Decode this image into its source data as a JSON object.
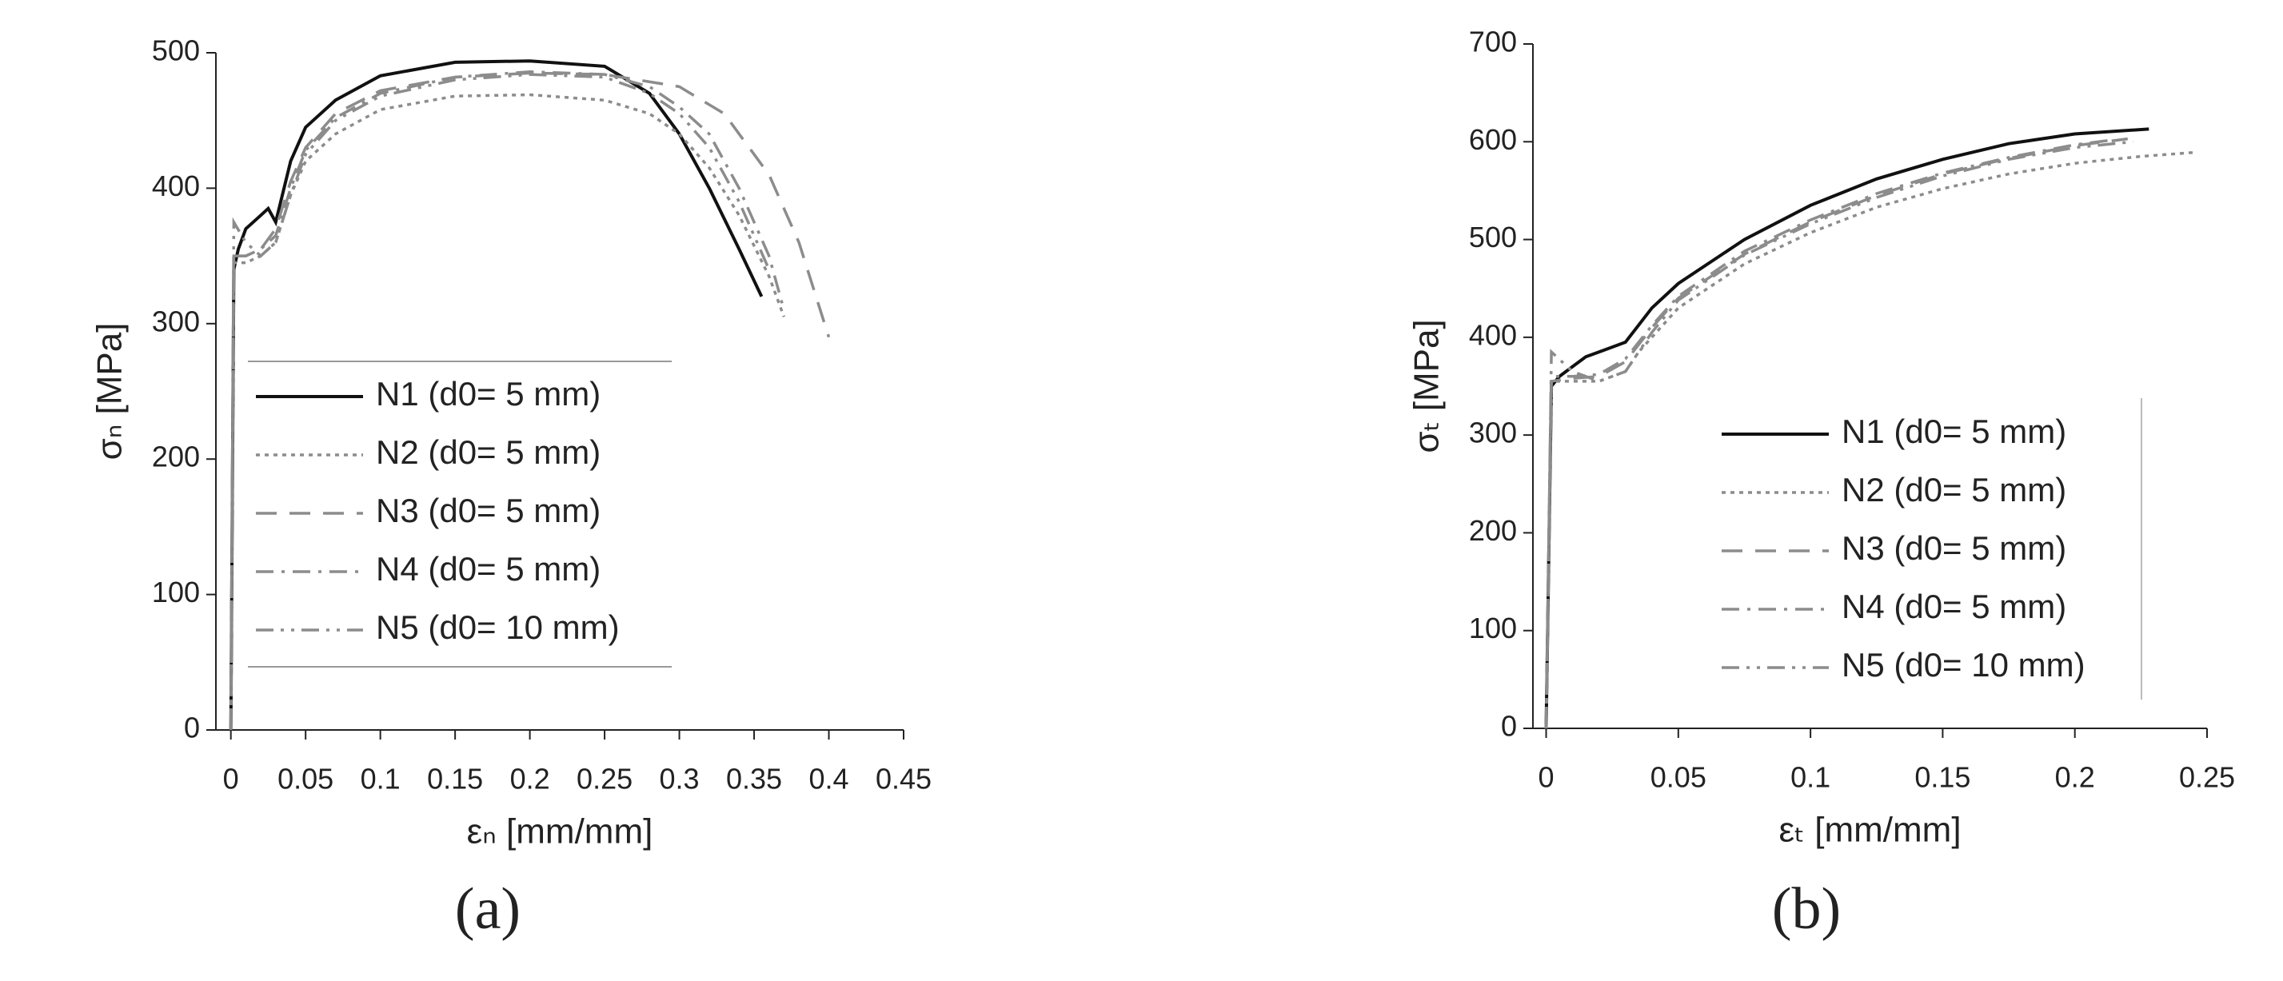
{
  "chart_data": [
    {
      "type": "line",
      "panel_label": "(a)",
      "xlabel": "εₙ [mm/mm]",
      "ylabel": "σₙ [MPa]",
      "xlim": [
        -0.01,
        0.45
      ],
      "ylim": [
        0,
        500
      ],
      "xticks": [
        0,
        0.05,
        0.1,
        0.15,
        0.2,
        0.25,
        0.3,
        0.35,
        0.4,
        0.45
      ],
      "yticks": [
        0,
        100,
        200,
        300,
        400,
        500
      ],
      "legend": "center left",
      "series": [
        {
          "name": "N1 (d0= 5 mm)",
          "color": "#111111",
          "dash": "solid",
          "x": [
            0,
            0.002,
            0.005,
            0.01,
            0.015,
            0.02,
            0.025,
            0.03,
            0.04,
            0.05,
            0.07,
            0.1,
            0.15,
            0.2,
            0.25,
            0.28,
            0.3,
            0.32,
            0.34,
            0.355
          ],
          "values": [
            0,
            340,
            355,
            370,
            375,
            380,
            385,
            375,
            420,
            445,
            465,
            483,
            493,
            494,
            490,
            470,
            440,
            400,
            355,
            320
          ]
        },
        {
          "name": "N2 (d0= 5 mm)",
          "color": "#8c8c8c",
          "dash": "dotted",
          "x": [
            0,
            0.002,
            0.01,
            0.02,
            0.03,
            0.04,
            0.05,
            0.07,
            0.1,
            0.15,
            0.2,
            0.25,
            0.28,
            0.3,
            0.32,
            0.34,
            0.36,
            0.37
          ],
          "values": [
            0,
            345,
            345,
            350,
            360,
            395,
            420,
            440,
            458,
            468,
            469,
            465,
            455,
            440,
            415,
            380,
            335,
            305
          ]
        },
        {
          "name": "N3 (d0= 5 mm)",
          "color": "#8c8c8c",
          "dash": "dashed",
          "x": [
            0,
            0.002,
            0.01,
            0.02,
            0.03,
            0.04,
            0.05,
            0.07,
            0.1,
            0.15,
            0.2,
            0.25,
            0.3,
            0.33,
            0.36,
            0.38,
            0.4
          ],
          "values": [
            0,
            350,
            350,
            355,
            370,
            405,
            430,
            455,
            472,
            482,
            485,
            484,
            475,
            455,
            410,
            360,
            290
          ]
        },
        {
          "name": "N4 (d0= 5 mm)",
          "color": "#8c8c8c",
          "dash": "dashdot",
          "x": [
            0,
            0.002,
            0.01,
            0.02,
            0.03,
            0.04,
            0.05,
            0.07,
            0.1,
            0.15,
            0.2,
            0.25,
            0.28,
            0.3,
            0.32,
            0.34,
            0.36,
            0.37
          ],
          "values": [
            0,
            350,
            350,
            355,
            365,
            400,
            428,
            452,
            470,
            482,
            486,
            484,
            475,
            460,
            440,
            400,
            350,
            310
          ]
        },
        {
          "name": "N5 (d0= 10 mm)",
          "color": "#8c8c8c",
          "dash": "dashdotdot",
          "x": [
            0,
            0.002,
            0.01,
            0.02,
            0.03,
            0.04,
            0.05,
            0.07,
            0.1,
            0.15,
            0.2,
            0.25,
            0.28,
            0.3,
            0.32,
            0.34,
            0.36
          ],
          "values": [
            0,
            375,
            360,
            350,
            360,
            395,
            425,
            450,
            468,
            480,
            484,
            482,
            470,
            455,
            430,
            390,
            340
          ]
        }
      ]
    },
    {
      "type": "line",
      "panel_label": "(b)",
      "xlabel": "εₜ [mm/mm]",
      "ylabel": "σₜ [MPa]",
      "xlim": [
        -0.005,
        0.25
      ],
      "ylim": [
        0,
        700
      ],
      "xticks": [
        0,
        0.05,
        0.1,
        0.15,
        0.2,
        0.25
      ],
      "yticks": [
        0,
        100,
        200,
        300,
        400,
        500,
        600,
        700
      ],
      "legend": "lower right",
      "series": [
        {
          "name": "N1 (d0= 5 mm)",
          "color": "#111111",
          "dash": "solid",
          "x": [
            0,
            0.002,
            0.005,
            0.01,
            0.015,
            0.02,
            0.025,
            0.03,
            0.04,
            0.05,
            0.075,
            0.1,
            0.125,
            0.15,
            0.175,
            0.2,
            0.228
          ],
          "values": [
            0,
            350,
            360,
            370,
            380,
            385,
            390,
            395,
            430,
            455,
            500,
            535,
            562,
            582,
            598,
            608,
            613
          ]
        },
        {
          "name": "N2 (d0= 5 mm)",
          "color": "#8c8c8c",
          "dash": "dotted",
          "x": [
            0,
            0.002,
            0.01,
            0.02,
            0.03,
            0.035,
            0.05,
            0.075,
            0.1,
            0.125,
            0.15,
            0.175,
            0.2,
            0.225,
            0.245
          ],
          "values": [
            0,
            355,
            355,
            355,
            365,
            385,
            430,
            475,
            507,
            533,
            552,
            567,
            578,
            585,
            589
          ]
        },
        {
          "name": "N3 (d0= 5 mm)",
          "color": "#8c8c8c",
          "dash": "dashed",
          "x": [
            0,
            0.002,
            0.01,
            0.02,
            0.03,
            0.04,
            0.05,
            0.075,
            0.1,
            0.125,
            0.15,
            0.175,
            0.2,
            0.22
          ],
          "values": [
            0,
            355,
            358,
            360,
            375,
            410,
            440,
            485,
            518,
            545,
            567,
            583,
            596,
            603
          ]
        },
        {
          "name": "N4 (d0= 5 mm)",
          "color": "#8c8c8c",
          "dash": "dashdot",
          "x": [
            0,
            0.002,
            0.01,
            0.02,
            0.03,
            0.04,
            0.05,
            0.075,
            0.1,
            0.125,
            0.15,
            0.175,
            0.2,
            0.215
          ],
          "values": [
            0,
            360,
            360,
            362,
            378,
            412,
            442,
            488,
            520,
            547,
            568,
            584,
            597,
            602
          ]
        },
        {
          "name": "N5 (d0= 10 mm)",
          "color": "#8c8c8c",
          "dash": "dashdotdot",
          "x": [
            0,
            0.002,
            0.01,
            0.02,
            0.03,
            0.04,
            0.05,
            0.075,
            0.1,
            0.125,
            0.15,
            0.175,
            0.2,
            0.222
          ],
          "values": [
            0,
            385,
            365,
            355,
            365,
            405,
            438,
            484,
            516,
            543,
            565,
            582,
            594,
            600
          ]
        }
      ]
    }
  ]
}
